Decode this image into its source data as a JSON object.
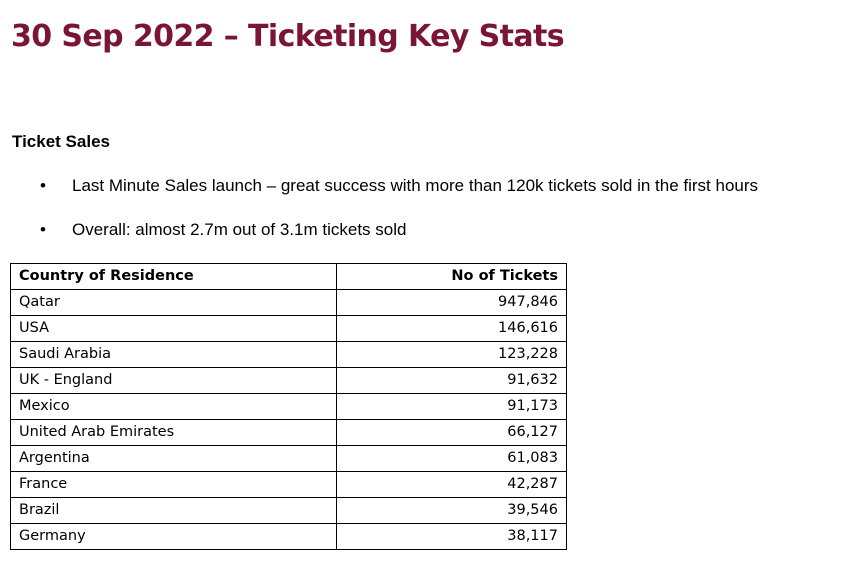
{
  "title": "30 Sep 2022 – Ticketing Key Stats",
  "colors": {
    "title": "#7a1535",
    "text": "#000000",
    "border": "#000000"
  },
  "ticket_sales": {
    "heading": "Ticket Sales",
    "bullets": [
      "Last Minute Sales launch – great success with more than 120k tickets sold in the first hours",
      "Overall: almost 2.7m out of 3.1m tickets sold"
    ]
  },
  "table": {
    "headers": [
      "Country of Residence",
      "No of Tickets"
    ],
    "rows": [
      {
        "country": "Qatar",
        "tickets": "947,846"
      },
      {
        "country": "USA",
        "tickets": "146,616"
      },
      {
        "country": "Saudi Arabia",
        "tickets": "123,228"
      },
      {
        "country": "UK - England",
        "tickets": "91,632"
      },
      {
        "country": "Mexico",
        "tickets": "91,173"
      },
      {
        "country": "United Arab Emirates",
        "tickets": "66,127"
      },
      {
        "country": "Argentina",
        "tickets": "61,083"
      },
      {
        "country": "France",
        "tickets": "42,287"
      },
      {
        "country": "Brazil",
        "tickets": "39,546"
      },
      {
        "country": "Germany",
        "tickets": "38,117"
      }
    ]
  }
}
